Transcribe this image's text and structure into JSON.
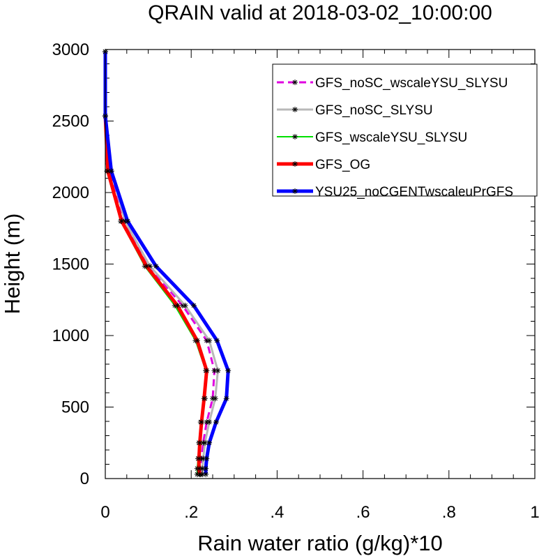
{
  "chart_data": {
    "type": "line",
    "title": "QRAIN valid at 2018-03-02_10:00:00",
    "xlabel": "Rain water ratio (g/kg)*10",
    "ylabel": "Height (m)",
    "xlim": [
      0,
      1
    ],
    "ylim": [
      0,
      3000
    ],
    "x_ticks": [
      0,
      0.2,
      0.4,
      0.6,
      0.8,
      1
    ],
    "x_tick_labels": [
      "0",
      ".2",
      ".4",
      ".6",
      ".8",
      "1"
    ],
    "y_ticks": [
      0,
      500,
      1000,
      1500,
      2000,
      2500,
      3000
    ],
    "y_tick_labels": [
      "0",
      "500",
      "1000",
      "1500",
      "2000",
      "2500",
      "3000"
    ],
    "legend_position": "top-right",
    "heights": [
      30,
      70,
      140,
      250,
      395,
      560,
      755,
      965,
      1210,
      1485,
      1800,
      2150,
      2535,
      2985
    ],
    "series": [
      {
        "name": "GFS_noSC_wscaleYSU_SLYSU",
        "color": "#e000e0",
        "dash": "10,6",
        "width": 3,
        "values": [
          0.222,
          0.222,
          0.224,
          0.228,
          0.236,
          0.25,
          0.254,
          0.236,
          0.18,
          0.1,
          0.042,
          0.01,
          0.0,
          0.0
        ]
      },
      {
        "name": "GFS_noSC_SLYSU",
        "color": "#b8b8b8",
        "dash": "",
        "width": 3,
        "values": [
          0.226,
          0.226,
          0.228,
          0.232,
          0.242,
          0.256,
          0.262,
          0.242,
          0.186,
          0.104,
          0.046,
          0.014,
          0.0,
          0.0
        ]
      },
      {
        "name": "GFS_wscaleYSU_SLYSU",
        "color": "#00e000",
        "dash": "",
        "width": 2,
        "values": [
          0.214,
          0.214,
          0.216,
          0.218,
          0.222,
          0.232,
          0.234,
          0.21,
          0.162,
          0.092,
          0.036,
          0.004,
          0.0,
          0.0
        ]
      },
      {
        "name": "GFS_OG",
        "color": "#ff0000",
        "dash": "",
        "width": 5,
        "values": [
          0.22,
          0.218,
          0.218,
          0.22,
          0.224,
          0.23,
          0.236,
          0.214,
          0.168,
          0.096,
          0.038,
          0.006,
          0.0,
          0.0
        ]
      },
      {
        "name": "YSU25_noCGENTwscaleuPrGFS",
        "color": "#0000ff",
        "dash": "",
        "width": 5,
        "values": [
          0.234,
          0.234,
          0.236,
          0.242,
          0.258,
          0.282,
          0.286,
          0.26,
          0.206,
          0.118,
          0.052,
          0.014,
          0.0,
          0.0
        ]
      }
    ]
  }
}
